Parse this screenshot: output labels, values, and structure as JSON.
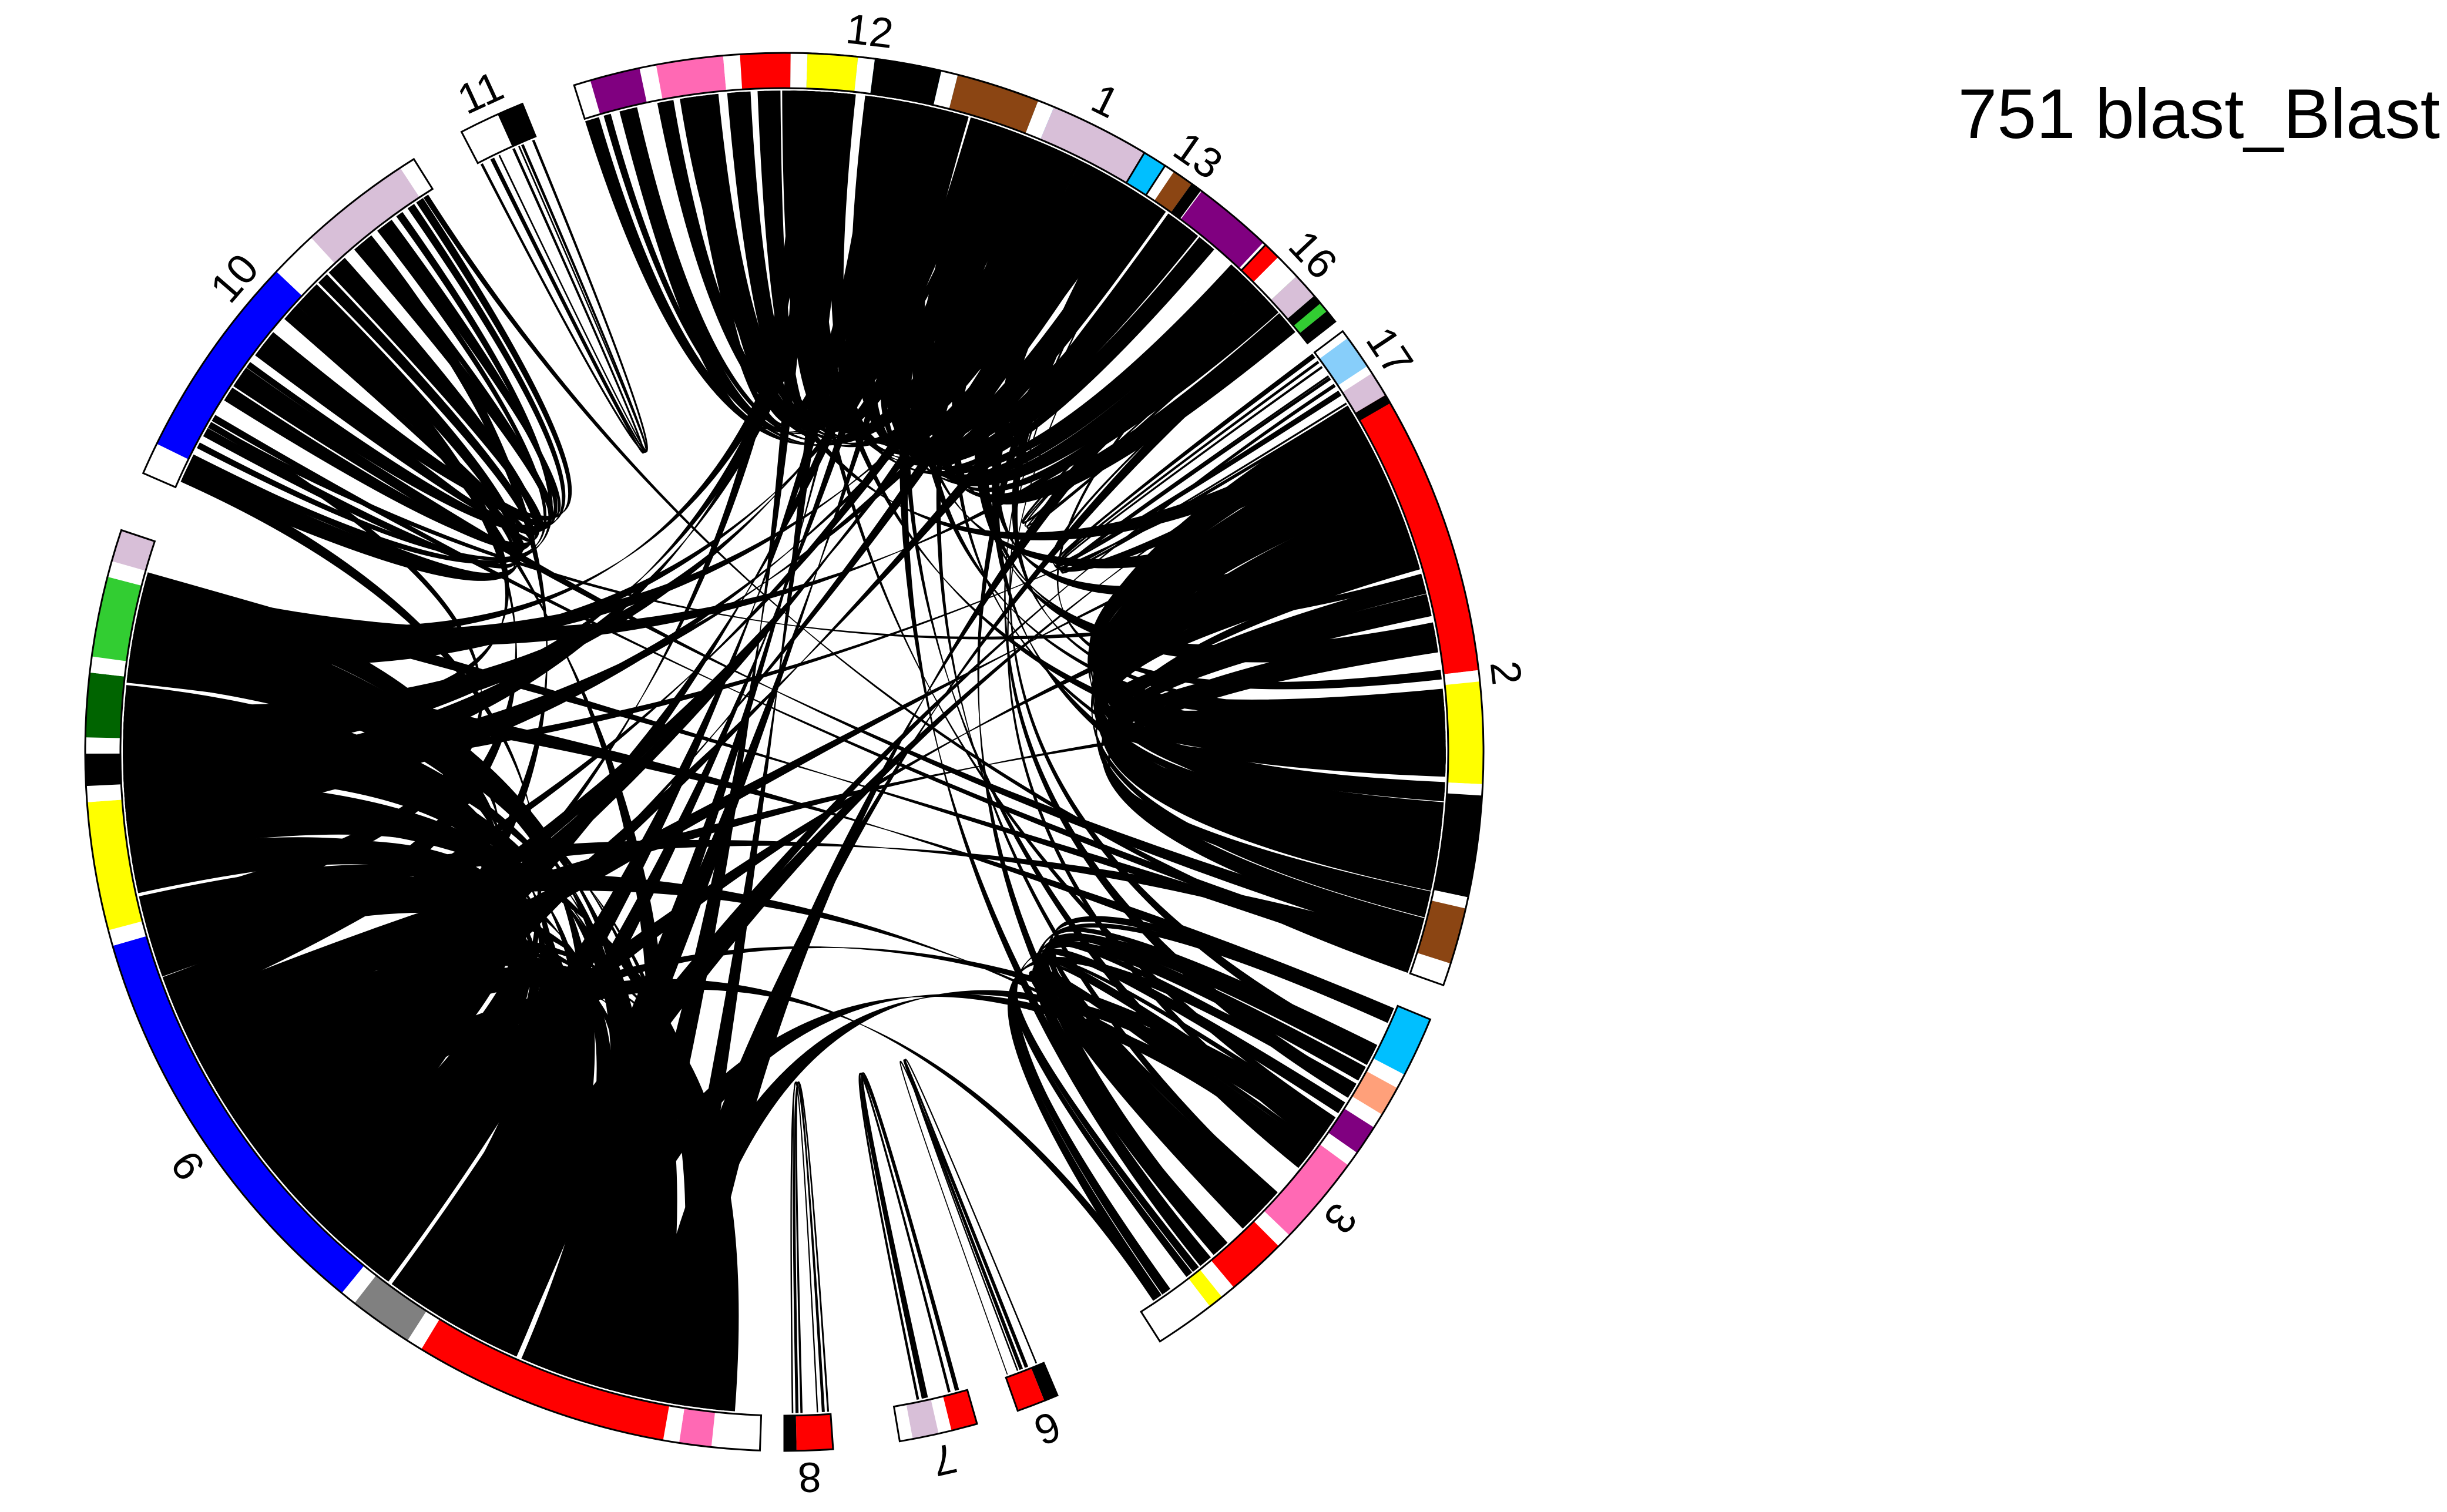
{
  "title": "751 blast_Blast",
  "colors": {
    "link": "#000000",
    "outline": "#000000",
    "background": "#ffffff"
  },
  "chromosomes": [
    {
      "id": "1",
      "label": "1",
      "start": 270.5,
      "end": 322.0,
      "segments": [
        [
          "#00bfff",
          30
        ],
        [
          "#ffffff",
          3
        ],
        [
          "#800080",
          6
        ],
        [
          "#ffffff",
          3
        ],
        [
          "#32cd32",
          4
        ],
        [
          "#000000",
          1
        ]
      ]
    },
    {
      "id": "2",
      "label": "2",
      "start": 328.0,
      "end": 379.5,
      "segments": [
        [
          "#ffffff",
          1
        ],
        [
          "#ff0000",
          26
        ],
        [
          "#ffffff",
          1
        ],
        [
          "#ffff00",
          9
        ],
        [
          "#ffffff",
          1
        ],
        [
          "#000000",
          9
        ],
        [
          "#ffffff",
          1
        ],
        [
          "#8b4513",
          5
        ],
        [
          "#ffffff",
          2
        ]
      ]
    },
    {
      "id": "3",
      "label": "3",
      "start": 382.5,
      "end": 417.5,
      "segments": [
        [
          "#00bfff",
          4
        ],
        [
          "#ffffff",
          1
        ],
        [
          "#ffa07a",
          2
        ],
        [
          "#ffffff",
          1
        ],
        [
          "#800080",
          2
        ],
        [
          "#ffffff",
          1
        ],
        [
          "#ff69b4",
          6
        ],
        [
          "#ffffff",
          1
        ],
        [
          "#ff0000",
          4
        ],
        [
          "#ffffff",
          1
        ],
        [
          "#ffff00",
          1
        ],
        [
          "#ffffff",
          4
        ]
      ]
    },
    {
      "id": "6",
      "label": "6",
      "start": 427.0,
      "end": 430.5,
      "segments": [
        [
          "#000000",
          1
        ],
        [
          "#ff0000",
          2
        ]
      ]
    },
    {
      "id": "7",
      "label": "7",
      "start": 434.0,
      "end": 440.5,
      "segments": [
        [
          "#ff0000",
          2
        ],
        [
          "#ffffff",
          1
        ],
        [
          "#d8bfd8",
          2
        ],
        [
          "#ffffff",
          1
        ]
      ]
    },
    {
      "id": "8",
      "label": "8",
      "start": 446.0,
      "end": 450.0,
      "segments": [
        [
          "#ff0000",
          3
        ],
        [
          "#000000",
          1
        ]
      ]
    },
    {
      "id": "9",
      "label": "9",
      "start": 452.0,
      "end": 558.5,
      "segments": [
        [
          "#ffffff",
          3
        ],
        [
          "#ff69b4",
          2
        ],
        [
          "#ffffff",
          1
        ],
        [
          "#ff0000",
          16
        ],
        [
          "#ffffff",
          1
        ],
        [
          "#808080",
          4
        ],
        [
          "#ffffff",
          1
        ],
        [
          "#0000ff",
          26
        ],
        [
          "#ffffff",
          1
        ],
        [
          "#ffff00",
          8
        ],
        [
          "#ffffff",
          1
        ],
        [
          "#000000",
          2
        ],
        [
          "#ffffff",
          1
        ],
        [
          "#006400",
          4
        ],
        [
          "#ffffff",
          1
        ],
        [
          "#32cd32",
          5
        ],
        [
          "#ffffff",
          1
        ],
        [
          "#d8bfd8",
          2
        ]
      ]
    },
    {
      "id": "10",
      "label": "10",
      "start": 563.5,
      "end": 598.0,
      "segments": [
        [
          "#ffffff",
          2
        ],
        [
          "#0000ff",
          13
        ],
        [
          "#ffffff",
          3
        ],
        [
          "#d8bfd8",
          7
        ],
        [
          "#ffffff",
          1
        ]
      ]
    },
    {
      "id": "11",
      "label": "11",
      "start": 602.5,
      "end": 608.0,
      "segments": [
        [
          "#ffffff",
          3
        ],
        [
          "#000000",
          2
        ]
      ]
    },
    {
      "id": "12",
      "label": "12",
      "start": 612.5,
      "end": 661.0,
      "segments": [
        [
          "#ffffff",
          1
        ],
        [
          "#800080",
          3
        ],
        [
          "#ffffff",
          1
        ],
        [
          "#ff69b4",
          4
        ],
        [
          "#ffffff",
          1
        ],
        [
          "#ff0000",
          3
        ],
        [
          "#ffffff",
          1
        ],
        [
          "#ffff00",
          3
        ],
        [
          "#ffffff",
          1
        ],
        [
          "#000000",
          4
        ],
        [
          "#ffffff",
          1
        ],
        [
          "#8b4513",
          5
        ],
        [
          "#ffffff",
          1
        ],
        [
          "#d8bfd8",
          6
        ]
      ]
    },
    {
      "id": "13",
      "label": "13",
      "start": 663.0,
      "end": 666.5,
      "segments": [
        [
          "#ffffff",
          1
        ],
        [
          "#8b4513",
          2
        ],
        [
          "#000000",
          1
        ]
      ]
    },
    {
      "id": "16",
      "label": "16",
      "start": 673.5,
      "end": 680.0,
      "segments": [
        [
          "#ff0000",
          2
        ],
        [
          "#ffffff",
          3
        ],
        [
          "#d8bfd8",
          3
        ],
        [
          "#000000",
          1
        ]
      ]
    },
    {
      "id": "17",
      "label": "17",
      "start": 683.0,
      "end": 690.0,
      "segments": [
        [
          "#ffffff",
          1
        ],
        [
          "#87cefa",
          4
        ],
        [
          "#ffffff",
          1
        ],
        [
          "#d8bfd8",
          3
        ],
        [
          "#000000",
          1
        ]
      ]
    }
  ],
  "links": [
    {
      "from": "1",
      "to": "1",
      "count": 30
    },
    {
      "from": "2",
      "to": "2",
      "count": 40
    },
    {
      "from": "3",
      "to": "3",
      "count": 22
    },
    {
      "from": "9",
      "to": "9",
      "count": 48
    },
    {
      "from": "10",
      "to": "10",
      "count": 18
    },
    {
      "from": "12",
      "to": "12",
      "count": 26
    },
    {
      "from": "11",
      "to": "11",
      "count": 4
    },
    {
      "from": "6",
      "to": "6",
      "count": 5
    },
    {
      "from": "7",
      "to": "7",
      "count": 4
    },
    {
      "from": "8",
      "to": "8",
      "count": 4
    },
    {
      "from": "13",
      "to": "13",
      "count": 3
    },
    {
      "from": "16",
      "to": "16",
      "count": 4
    },
    {
      "from": "17",
      "to": "17",
      "count": 6
    },
    {
      "from": "1",
      "to": "9",
      "count": 16
    },
    {
      "from": "2",
      "to": "12",
      "count": 6
    },
    {
      "from": "2",
      "to": "10",
      "count": 4
    },
    {
      "from": "3",
      "to": "9",
      "count": 6
    },
    {
      "from": "1",
      "to": "2",
      "count": 4
    },
    {
      "from": "12",
      "to": "9",
      "count": 8
    },
    {
      "from": "13",
      "to": "3",
      "count": 3
    },
    {
      "from": "16",
      "to": "2",
      "count": 2
    },
    {
      "from": "17",
      "to": "9",
      "count": 3
    },
    {
      "from": "10",
      "to": "9",
      "count": 6
    },
    {
      "from": "2",
      "to": "9",
      "count": 5
    },
    {
      "from": "1",
      "to": "3",
      "count": 3
    },
    {
      "from": "12",
      "to": "3",
      "count": 2
    }
  ]
}
